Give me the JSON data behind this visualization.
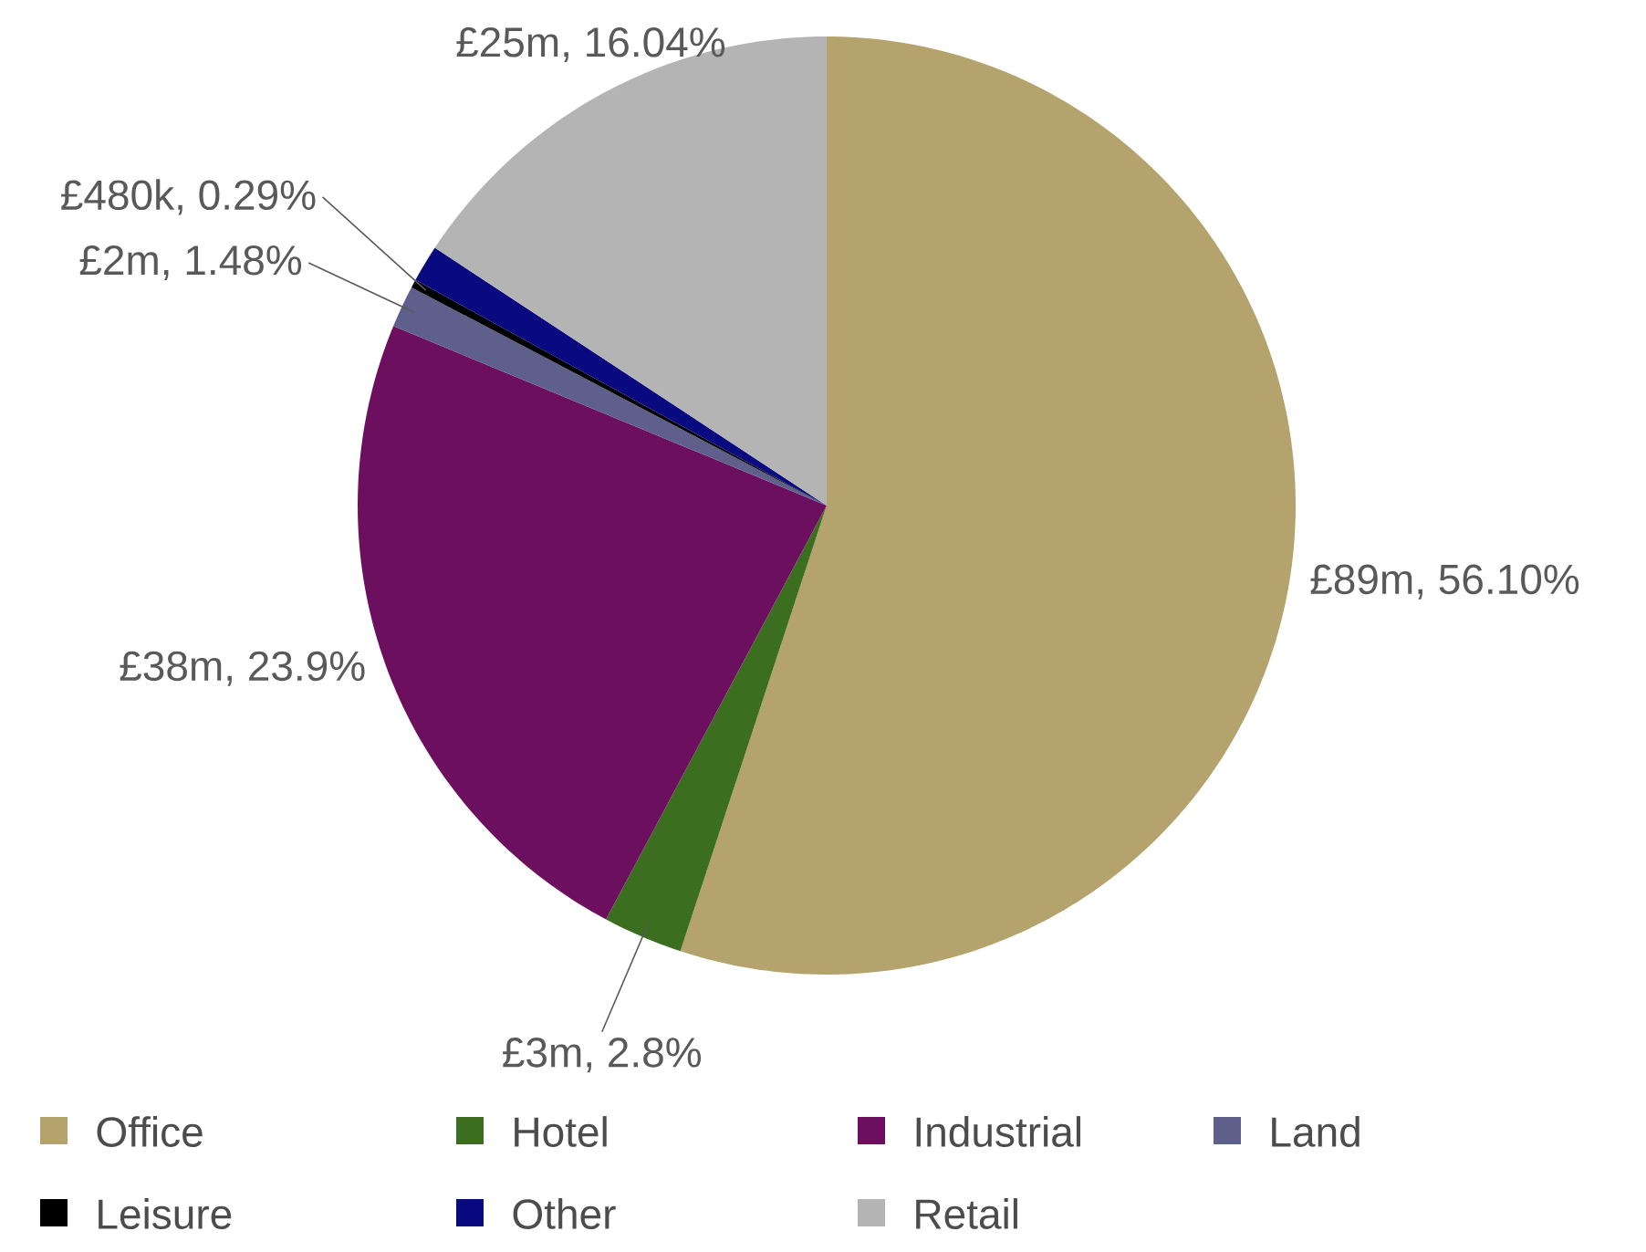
{
  "chart_data": {
    "type": "pie",
    "categories": [
      "Office",
      "Hotel",
      "Industrial",
      "Land",
      "Leisure",
      "Other",
      "Retail"
    ],
    "values": [
      56.1,
      2.8,
      23.9,
      1.48,
      0.29,
      1.3,
      16.04
    ],
    "value_labels": [
      "£89m, 56.10%",
      "£3m, 2.8%",
      "£38m, 23.9%",
      "£2m, 1.48%",
      "£480k, 0.29%",
      null,
      "£25m, 16.04%"
    ],
    "colors": [
      "#b5a36e",
      "#3b6e1f",
      "#6d0f5f",
      "#5f5f8c",
      "#000000",
      "#0a0a80",
      "#b4b4b4"
    ],
    "legend": "bottom"
  }
}
